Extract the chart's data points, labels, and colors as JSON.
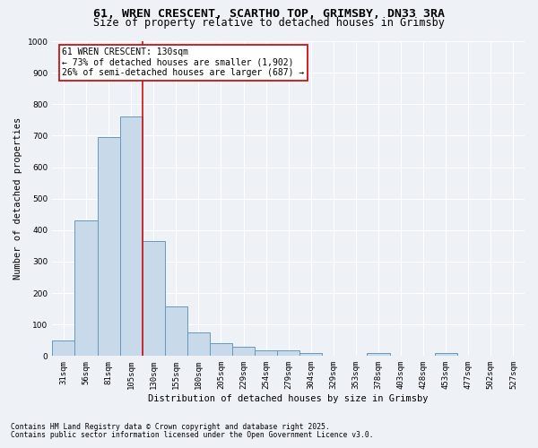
{
  "title_line1": "61, WREN CRESCENT, SCARTHO TOP, GRIMSBY, DN33 3RA",
  "title_line2": "Size of property relative to detached houses in Grimsby",
  "xlabel": "Distribution of detached houses by size in Grimsby",
  "ylabel": "Number of detached properties",
  "bar_color": "#c8daea",
  "bar_edge_color": "#6699bb",
  "vline_color": "#cc1111",
  "vline_index": 4,
  "annotation_title": "61 WREN CRESCENT: 130sqm",
  "annotation_line2": "← 73% of detached houses are smaller (1,902)",
  "annotation_line3": "26% of semi-detached houses are larger (687) →",
  "categories": [
    "31sqm",
    "56sqm",
    "81sqm",
    "105sqm",
    "130sqm",
    "155sqm",
    "180sqm",
    "205sqm",
    "229sqm",
    "254sqm",
    "279sqm",
    "304sqm",
    "329sqm",
    "353sqm",
    "378sqm",
    "403sqm",
    "428sqm",
    "453sqm",
    "477sqm",
    "502sqm",
    "527sqm"
  ],
  "values": [
    50,
    430,
    695,
    760,
    365,
    157,
    75,
    40,
    30,
    17,
    17,
    10,
    0,
    0,
    10,
    0,
    0,
    10,
    0,
    0,
    0
  ],
  "ylim": [
    0,
    1000
  ],
  "yticks": [
    0,
    100,
    200,
    300,
    400,
    500,
    600,
    700,
    800,
    900,
    1000
  ],
  "footnote_line1": "Contains HM Land Registry data © Crown copyright and database right 2025.",
  "footnote_line2": "Contains public sector information licensed under the Open Government Licence v3.0.",
  "background_color": "#eef2f7",
  "grid_color": "#ffffff",
  "title_fontsize": 9.5,
  "subtitle_fontsize": 8.5,
  "axis_label_fontsize": 7.5,
  "tick_fontsize": 6.5,
  "footnote_fontsize": 5.8,
  "annotation_fontsize": 7.0,
  "annotation_box_color": "#ffffff",
  "annotation_box_edge": "#cc1111"
}
